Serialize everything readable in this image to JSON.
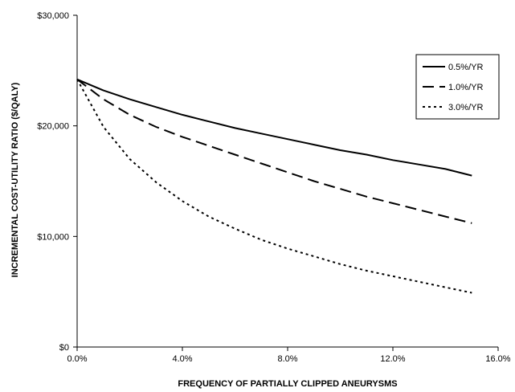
{
  "chart_data": {
    "type": "line",
    "title": "",
    "xlabel": "FREQUENCY OF PARTIALLY CLIPPED ANEURYSMS",
    "ylabel": "INCREMENTAL COST-UTILITY RATIO ($/QALY)",
    "xlim": [
      0,
      16
    ],
    "ylim": [
      0,
      30000
    ],
    "x_ticks": [
      0,
      4,
      8,
      12,
      16
    ],
    "x_tick_labels": [
      "0.0%",
      "4.0%",
      "8.0%",
      "12.0%",
      "16.0%"
    ],
    "y_ticks": [
      0,
      10000,
      20000,
      30000
    ],
    "y_tick_labels": [
      "$0",
      "$10,000",
      "$20,000",
      "$30,000"
    ],
    "grid": false,
    "legend_position": "top-right",
    "x": [
      0,
      1,
      2,
      3,
      4,
      5,
      6,
      7,
      8,
      9,
      10,
      11,
      12,
      13,
      14,
      15
    ],
    "series": [
      {
        "name": "0.5%/YR",
        "dash": "solid",
        "values": [
          24200,
          23200,
          22400,
          21700,
          21000,
          20400,
          19800,
          19300,
          18800,
          18300,
          17800,
          17400,
          16900,
          16500,
          16100,
          15500
        ]
      },
      {
        "name": "1.0%/YR",
        "dash": "dashed",
        "values": [
          24200,
          22400,
          21000,
          19900,
          19000,
          18200,
          17400,
          16600,
          15800,
          15000,
          14300,
          13600,
          13000,
          12400,
          11800,
          11200
        ]
      },
      {
        "name": "3.0%/YR",
        "dash": "dotted",
        "values": [
          24200,
          19900,
          17000,
          14900,
          13200,
          11800,
          10700,
          9700,
          8900,
          8200,
          7500,
          6900,
          6400,
          5900,
          5400,
          4900
        ]
      }
    ],
    "colors": {
      "line": "#000000",
      "axis": "#000000",
      "background": "#ffffff"
    }
  }
}
